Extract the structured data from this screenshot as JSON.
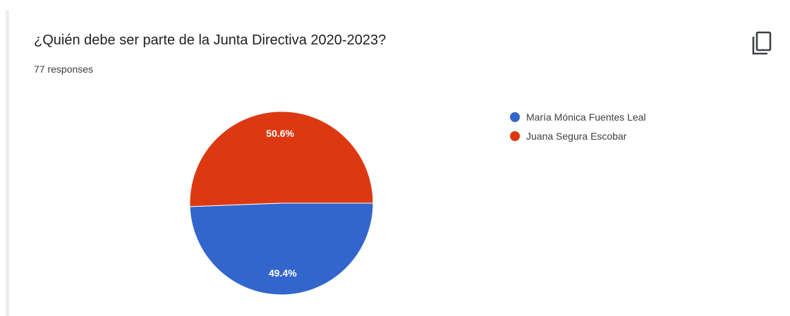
{
  "question": {
    "title": "¿Quién debe ser parte de la Junta Directiva 2020-2023?",
    "responses": "77 responses",
    "copy_icon": "copy-icon"
  },
  "chart_data": {
    "type": "pie",
    "title": "",
    "slices": [
      {
        "label": "María Mónica Fuentes Leal",
        "value": 49.4,
        "display": "49.4%",
        "color": "#3366cc"
      },
      {
        "label": "Juana Segura Escobar",
        "value": 50.6,
        "display": "50.6%",
        "color": "#dc3912"
      }
    ],
    "legend": "right"
  }
}
